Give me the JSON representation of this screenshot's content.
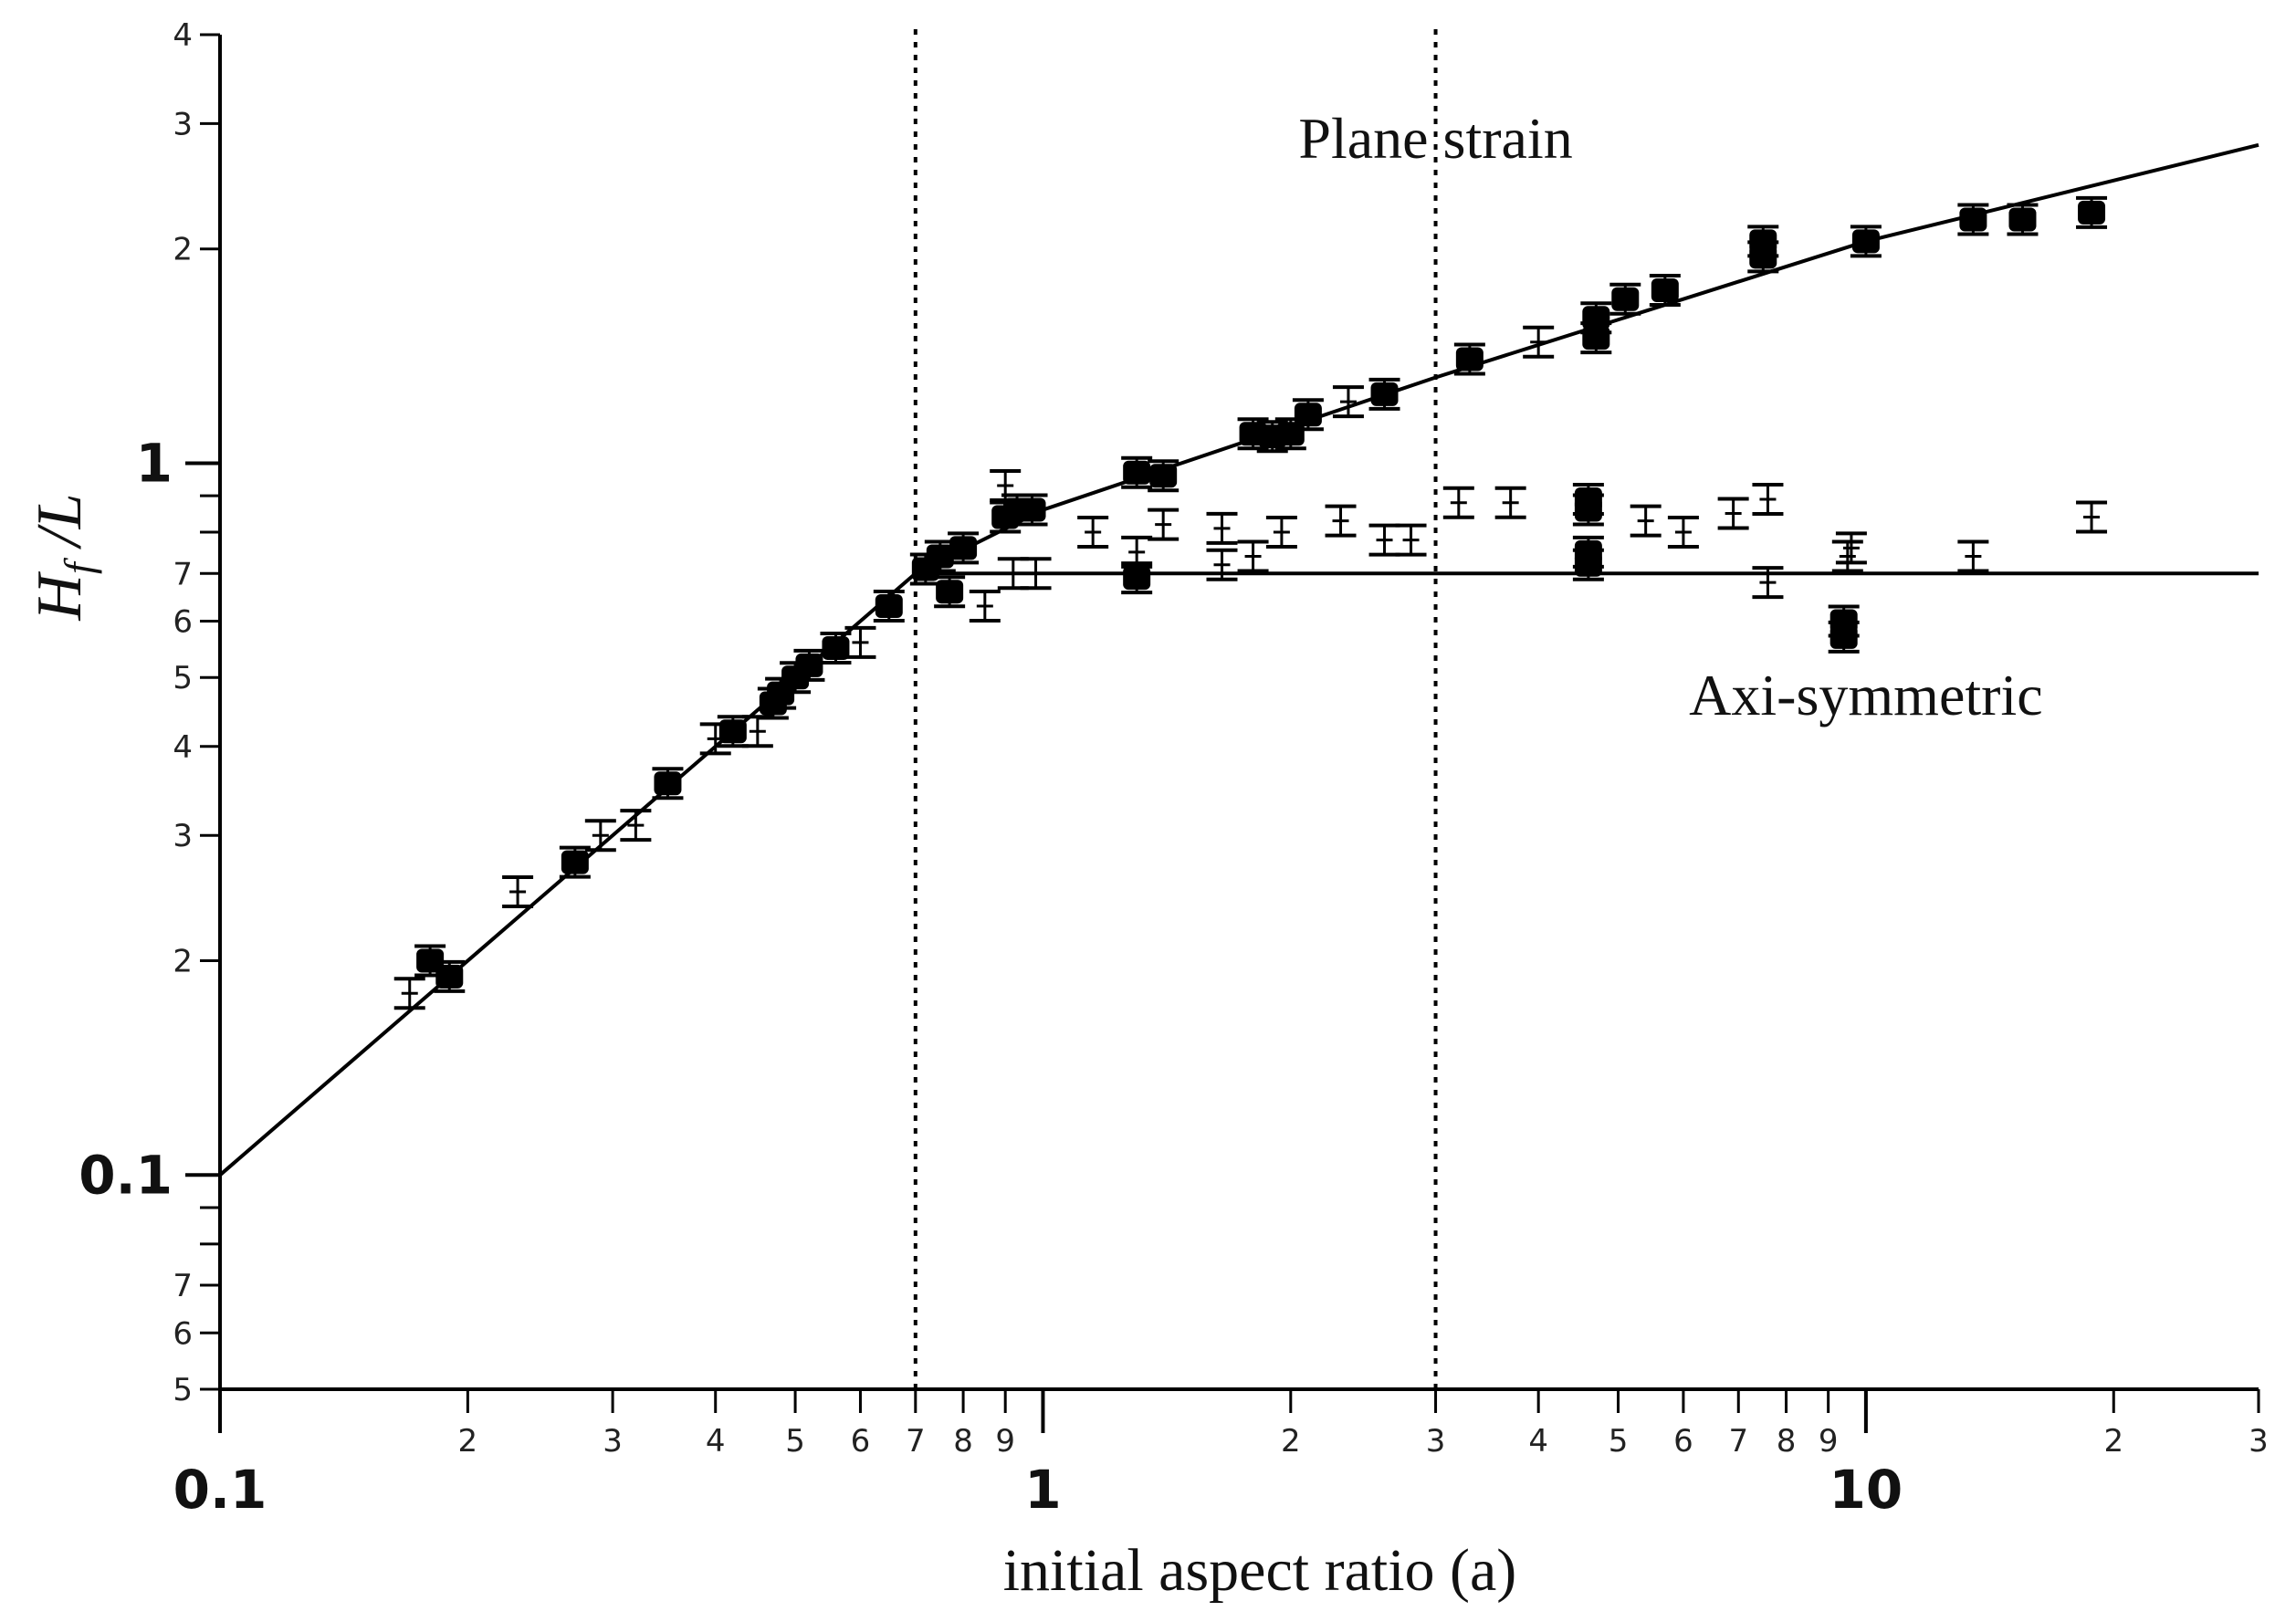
{
  "chart_data": {
    "type": "scatter",
    "title": "",
    "xlabel": "initial aspect ratio (a)",
    "ylabel": {
      "main": "H",
      "sub": "f",
      "rest": "/L"
    },
    "x_scale": "log",
    "y_scale": "log",
    "xlim": [
      0.1,
      30
    ],
    "ylim": [
      0.05,
      4
    ],
    "grid": false,
    "x_ticks": {
      "major": [
        {
          "value": 0.1,
          "label": "0.1"
        },
        {
          "value": 1,
          "label": "1"
        },
        {
          "value": 10,
          "label": "10"
        }
      ],
      "minor": [
        {
          "value": 0.2,
          "label": "2"
        },
        {
          "value": 0.3,
          "label": "3"
        },
        {
          "value": 0.4,
          "label": "4"
        },
        {
          "value": 0.5,
          "label": "5"
        },
        {
          "value": 0.6,
          "label": "6"
        },
        {
          "value": 0.7,
          "label": "7"
        },
        {
          "value": 0.8,
          "label": "8"
        },
        {
          "value": 0.9,
          "label": "9"
        },
        {
          "value": 2,
          "label": "2"
        },
        {
          "value": 3,
          "label": "3"
        },
        {
          "value": 4,
          "label": "4"
        },
        {
          "value": 5,
          "label": "5"
        },
        {
          "value": 6,
          "label": "6"
        },
        {
          "value": 7,
          "label": "7"
        },
        {
          "value": 8,
          "label": "8"
        },
        {
          "value": 9,
          "label": "9"
        },
        {
          "value": 20,
          "label": "2"
        },
        {
          "value": 30,
          "label": "3"
        }
      ]
    },
    "y_ticks": {
      "major": [
        {
          "value": 0.1,
          "label": "0.1"
        },
        {
          "value": 1,
          "label": "1"
        }
      ],
      "minor": [
        {
          "value": 0.05,
          "label": "5"
        },
        {
          "value": 0.06,
          "label": "6"
        },
        {
          "value": 0.07,
          "label": "7"
        },
        {
          "value": 0.08,
          "label": ""
        },
        {
          "value": 0.09,
          "label": ""
        },
        {
          "value": 0.2,
          "label": "2"
        },
        {
          "value": 0.3,
          "label": "3"
        },
        {
          "value": 0.4,
          "label": "4"
        },
        {
          "value": 0.5,
          "label": "5"
        },
        {
          "value": 0.6,
          "label": "6"
        },
        {
          "value": 0.7,
          "label": "7"
        },
        {
          "value": 0.8,
          "label": ""
        },
        {
          "value": 0.9,
          "label": ""
        },
        {
          "value": 2,
          "label": "2"
        },
        {
          "value": 3,
          "label": "3"
        },
        {
          "value": 4,
          "label": "4"
        }
      ]
    },
    "vertical_lines": [
      {
        "x": 0.7,
        "style": "dotted"
      },
      {
        "x": 3,
        "style": "dotted"
      }
    ],
    "annotations": [
      {
        "text": "Plane strain",
        "x": 3.0,
        "y": 2.85
      },
      {
        "text": "Axi-symmetric",
        "x": 10.0,
        "y": 0.47
      }
    ],
    "fit_lines": [
      {
        "name": "",
        "points": [
          [
            0.1,
            0.1
          ],
          [
            0.7,
            0.7
          ],
          [
            1.0,
            0.86
          ],
          [
            3.0,
            1.32
          ],
          [
            10.0,
            2.05
          ],
          [
            30.0,
            2.8
          ]
        ]
      },
      {
        "name": "",
        "points": [
          [
            0.7,
            0.7
          ],
          [
            30.0,
            0.7
          ]
        ]
      }
    ],
    "series": [
      {
        "name": "",
        "marker": "filled",
        "points": [
          [
            0.19,
            0.19
          ],
          [
            0.18,
            0.2
          ],
          [
            0.27,
            0.275
          ],
          [
            0.35,
            0.355
          ],
          [
            0.42,
            0.42
          ],
          [
            0.47,
            0.46
          ],
          [
            0.48,
            0.475
          ],
          [
            0.5,
            0.5
          ],
          [
            0.52,
            0.52
          ],
          [
            0.56,
            0.55
          ],
          [
            0.65,
            0.63
          ],
          [
            0.72,
            0.71
          ],
          [
            0.75,
            0.74
          ],
          [
            0.8,
            0.76
          ],
          [
            0.9,
            0.84
          ],
          [
            0.93,
            0.86
          ],
          [
            0.97,
            0.86
          ],
          [
            1.3,
            0.97
          ],
          [
            1.4,
            0.96
          ],
          [
            1.8,
            1.1
          ],
          [
            1.9,
            1.09
          ],
          [
            2.0,
            1.1
          ],
          [
            2.1,
            1.17
          ],
          [
            2.6,
            1.25
          ],
          [
            3.3,
            1.4
          ],
          [
            4.7,
            1.6
          ],
          [
            4.7,
            1.5
          ],
          [
            5.1,
            1.7
          ],
          [
            5.7,
            1.75
          ],
          [
            7.5,
            1.95
          ],
          [
            7.5,
            2.05
          ],
          [
            10.0,
            2.05
          ],
          [
            13.5,
            2.2
          ],
          [
            15.5,
            2.2
          ],
          [
            18.8,
            2.25
          ],
          [
            4.6,
            0.89
          ],
          [
            4.6,
            0.86
          ],
          [
            4.6,
            0.75
          ],
          [
            4.6,
            0.72
          ],
          [
            9.4,
            0.6
          ],
          [
            9.4,
            0.57
          ],
          [
            1.3,
            0.69
          ],
          [
            0.77,
            0.66
          ]
        ]
      },
      {
        "name": "",
        "marker": "open",
        "points": [
          [
            0.17,
            0.18
          ],
          [
            0.23,
            0.25
          ],
          [
            0.29,
            0.3
          ],
          [
            0.32,
            0.31
          ],
          [
            0.4,
            0.41
          ],
          [
            0.45,
            0.42
          ],
          [
            0.6,
            0.56
          ],
          [
            0.85,
            0.63
          ],
          [
            0.92,
            0.7
          ],
          [
            0.98,
            0.7
          ],
          [
            1.15,
            0.8
          ],
          [
            1.4,
            0.82
          ],
          [
            1.3,
            0.75
          ],
          [
            1.65,
            0.81
          ],
          [
            1.65,
            0.72
          ],
          [
            1.8,
            0.74
          ],
          [
            1.95,
            0.8
          ],
          [
            2.3,
            0.83
          ],
          [
            2.6,
            0.78
          ],
          [
            2.8,
            0.78
          ],
          [
            3.2,
            0.88
          ],
          [
            3.7,
            0.88
          ],
          [
            5.4,
            0.83
          ],
          [
            6.0,
            0.8
          ],
          [
            6.9,
            0.85
          ],
          [
            7.6,
            0.89
          ],
          [
            7.6,
            0.68
          ],
          [
            9.5,
            0.74
          ],
          [
            9.6,
            0.76
          ],
          [
            13.5,
            0.74
          ],
          [
            18.8,
            0.84
          ],
          [
            4.0,
            1.48
          ],
          [
            2.35,
            1.22
          ],
          [
            0.9,
            0.93
          ]
        ]
      }
    ]
  }
}
